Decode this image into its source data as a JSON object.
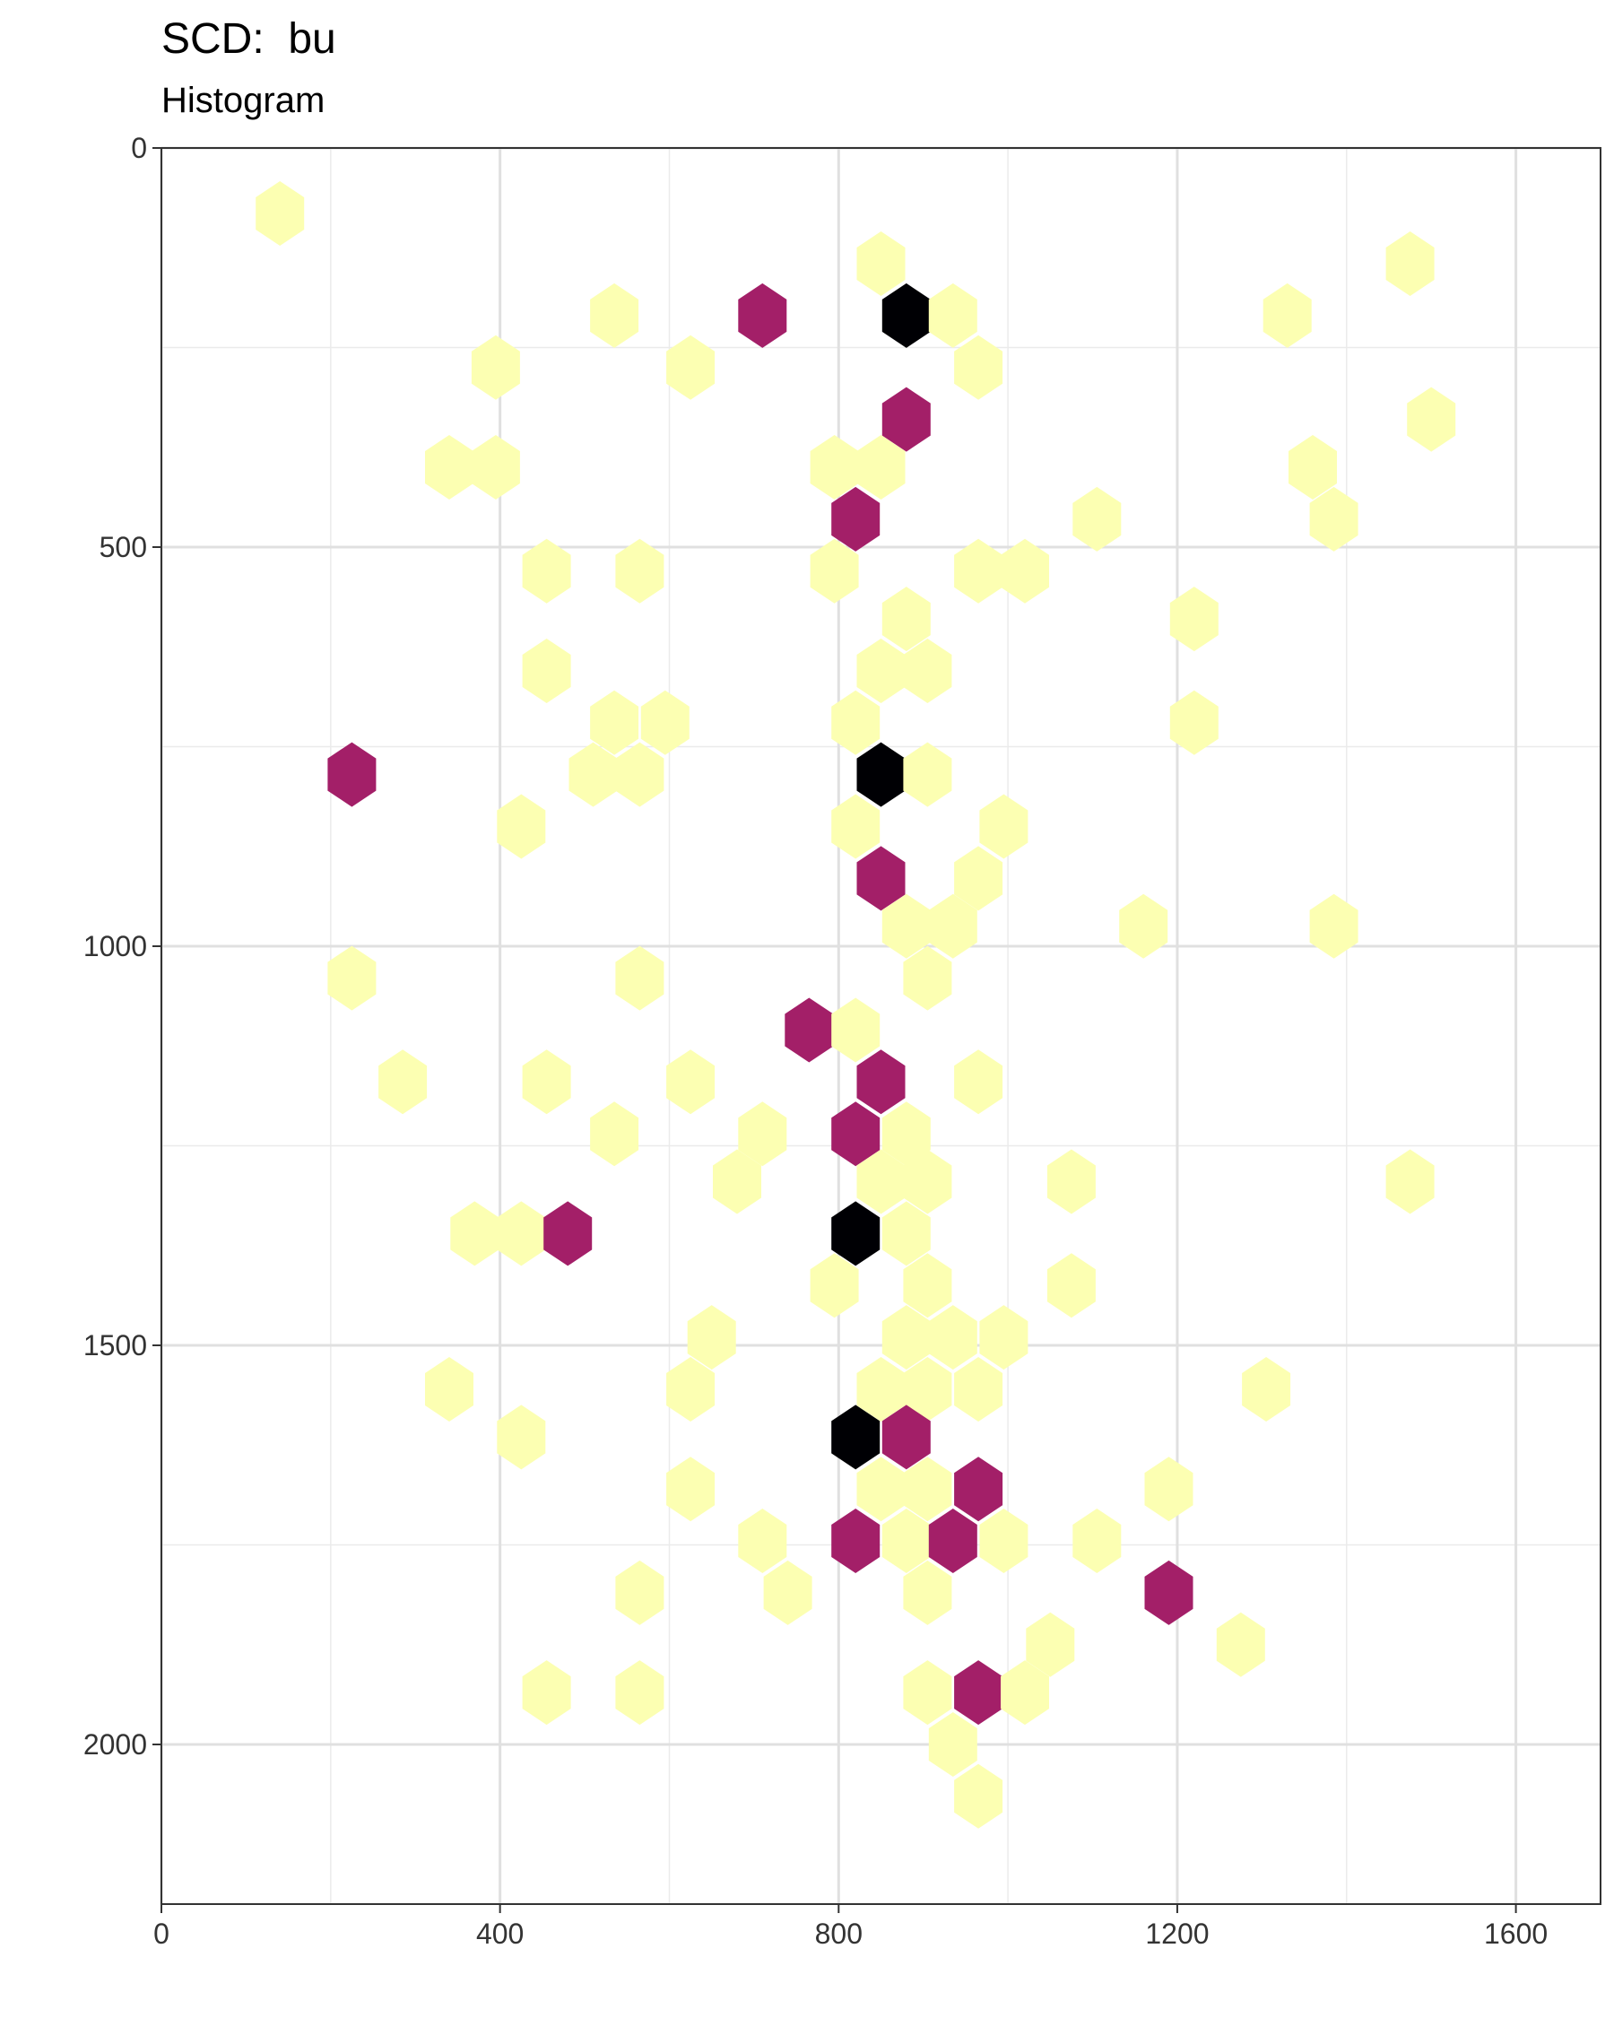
{
  "chart_data": {
    "type": "hexbin",
    "title": "SCD:  bu",
    "subtitle": "Histogram",
    "xlabel": "",
    "ylabel": "",
    "xlim": [
      0,
      1700
    ],
    "ylim": [
      0,
      2200
    ],
    "y_reversed": true,
    "grid": true,
    "x_ticks": [
      0,
      400,
      800,
      1200,
      1600
    ],
    "y_ticks": [
      0,
      500,
      1000,
      1500,
      2000
    ],
    "colors": {
      "low": "#fcffb2",
      "mid": "#a31f68",
      "high": "#000004"
    },
    "bins": [
      {
        "x": 140,
        "y": 82,
        "level": "low"
      },
      {
        "x": 850,
        "y": 145,
        "level": "low"
      },
      {
        "x": 1475,
        "y": 145,
        "level": "low"
      },
      {
        "x": 535,
        "y": 210,
        "level": "low"
      },
      {
        "x": 710,
        "y": 210,
        "level": "mid"
      },
      {
        "x": 880,
        "y": 210,
        "level": "high"
      },
      {
        "x": 935,
        "y": 210,
        "level": "low"
      },
      {
        "x": 1330,
        "y": 210,
        "level": "low"
      },
      {
        "x": 395,
        "y": 275,
        "level": "low"
      },
      {
        "x": 625,
        "y": 275,
        "level": "low"
      },
      {
        "x": 965,
        "y": 275,
        "level": "low"
      },
      {
        "x": 880,
        "y": 340,
        "level": "mid"
      },
      {
        "x": 1500,
        "y": 340,
        "level": "low"
      },
      {
        "x": 340,
        "y": 400,
        "level": "low"
      },
      {
        "x": 395,
        "y": 400,
        "level": "low"
      },
      {
        "x": 795,
        "y": 400,
        "level": "low"
      },
      {
        "x": 850,
        "y": 400,
        "level": "low"
      },
      {
        "x": 1360,
        "y": 400,
        "level": "low"
      },
      {
        "x": 820,
        "y": 465,
        "level": "mid"
      },
      {
        "x": 1105,
        "y": 465,
        "level": "low"
      },
      {
        "x": 1385,
        "y": 465,
        "level": "low"
      },
      {
        "x": 455,
        "y": 530,
        "level": "low"
      },
      {
        "x": 565,
        "y": 530,
        "level": "low"
      },
      {
        "x": 795,
        "y": 530,
        "level": "low"
      },
      {
        "x": 965,
        "y": 530,
        "level": "low"
      },
      {
        "x": 1020,
        "y": 530,
        "level": "low"
      },
      {
        "x": 880,
        "y": 590,
        "level": "low"
      },
      {
        "x": 1220,
        "y": 590,
        "level": "low"
      },
      {
        "x": 455,
        "y": 655,
        "level": "low"
      },
      {
        "x": 850,
        "y": 655,
        "level": "low"
      },
      {
        "x": 905,
        "y": 655,
        "level": "low"
      },
      {
        "x": 535,
        "y": 720,
        "level": "low"
      },
      {
        "x": 595,
        "y": 720,
        "level": "low"
      },
      {
        "x": 820,
        "y": 720,
        "level": "low"
      },
      {
        "x": 1220,
        "y": 720,
        "level": "low"
      },
      {
        "x": 225,
        "y": 785,
        "level": "mid"
      },
      {
        "x": 510,
        "y": 785,
        "level": "low"
      },
      {
        "x": 565,
        "y": 785,
        "level": "low"
      },
      {
        "x": 850,
        "y": 785,
        "level": "high"
      },
      {
        "x": 905,
        "y": 785,
        "level": "low"
      },
      {
        "x": 425,
        "y": 850,
        "level": "low"
      },
      {
        "x": 820,
        "y": 850,
        "level": "low"
      },
      {
        "x": 995,
        "y": 850,
        "level": "low"
      },
      {
        "x": 850,
        "y": 915,
        "level": "mid"
      },
      {
        "x": 965,
        "y": 915,
        "level": "low"
      },
      {
        "x": 880,
        "y": 975,
        "level": "low"
      },
      {
        "x": 935,
        "y": 975,
        "level": "low"
      },
      {
        "x": 1160,
        "y": 975,
        "level": "low"
      },
      {
        "x": 1385,
        "y": 975,
        "level": "low"
      },
      {
        "x": 225,
        "y": 1040,
        "level": "low"
      },
      {
        "x": 565,
        "y": 1040,
        "level": "low"
      },
      {
        "x": 905,
        "y": 1040,
        "level": "low"
      },
      {
        "x": 765,
        "y": 1105,
        "level": "mid"
      },
      {
        "x": 820,
        "y": 1105,
        "level": "low"
      },
      {
        "x": 285,
        "y": 1170,
        "level": "low"
      },
      {
        "x": 455,
        "y": 1170,
        "level": "low"
      },
      {
        "x": 625,
        "y": 1170,
        "level": "low"
      },
      {
        "x": 850,
        "y": 1170,
        "level": "mid"
      },
      {
        "x": 965,
        "y": 1170,
        "level": "low"
      },
      {
        "x": 535,
        "y": 1235,
        "level": "low"
      },
      {
        "x": 710,
        "y": 1235,
        "level": "low"
      },
      {
        "x": 820,
        "y": 1235,
        "level": "mid"
      },
      {
        "x": 880,
        "y": 1235,
        "level": "low"
      },
      {
        "x": 680,
        "y": 1295,
        "level": "low"
      },
      {
        "x": 850,
        "y": 1295,
        "level": "low"
      },
      {
        "x": 905,
        "y": 1295,
        "level": "low"
      },
      {
        "x": 1075,
        "y": 1295,
        "level": "low"
      },
      {
        "x": 1475,
        "y": 1295,
        "level": "low"
      },
      {
        "x": 370,
        "y": 1360,
        "level": "low"
      },
      {
        "x": 425,
        "y": 1360,
        "level": "low"
      },
      {
        "x": 480,
        "y": 1360,
        "level": "mid"
      },
      {
        "x": 820,
        "y": 1360,
        "level": "high"
      },
      {
        "x": 880,
        "y": 1360,
        "level": "low"
      },
      {
        "x": 795,
        "y": 1425,
        "level": "low"
      },
      {
        "x": 905,
        "y": 1425,
        "level": "low"
      },
      {
        "x": 1075,
        "y": 1425,
        "level": "low"
      },
      {
        "x": 650,
        "y": 1490,
        "level": "low"
      },
      {
        "x": 880,
        "y": 1490,
        "level": "low"
      },
      {
        "x": 935,
        "y": 1490,
        "level": "low"
      },
      {
        "x": 995,
        "y": 1490,
        "level": "low"
      },
      {
        "x": 340,
        "y": 1555,
        "level": "low"
      },
      {
        "x": 625,
        "y": 1555,
        "level": "low"
      },
      {
        "x": 850,
        "y": 1555,
        "level": "low"
      },
      {
        "x": 905,
        "y": 1555,
        "level": "low"
      },
      {
        "x": 965,
        "y": 1555,
        "level": "low"
      },
      {
        "x": 1305,
        "y": 1555,
        "level": "low"
      },
      {
        "x": 425,
        "y": 1615,
        "level": "low"
      },
      {
        "x": 820,
        "y": 1615,
        "level": "high"
      },
      {
        "x": 880,
        "y": 1615,
        "level": "mid"
      },
      {
        "x": 625,
        "y": 1680,
        "level": "low"
      },
      {
        "x": 850,
        "y": 1680,
        "level": "low"
      },
      {
        "x": 905,
        "y": 1680,
        "level": "low"
      },
      {
        "x": 965,
        "y": 1680,
        "level": "mid"
      },
      {
        "x": 1190,
        "y": 1680,
        "level": "low"
      },
      {
        "x": 710,
        "y": 1745,
        "level": "low"
      },
      {
        "x": 820,
        "y": 1745,
        "level": "mid"
      },
      {
        "x": 880,
        "y": 1745,
        "level": "low"
      },
      {
        "x": 935,
        "y": 1745,
        "level": "mid"
      },
      {
        "x": 995,
        "y": 1745,
        "level": "low"
      },
      {
        "x": 1105,
        "y": 1745,
        "level": "low"
      },
      {
        "x": 565,
        "y": 1810,
        "level": "low"
      },
      {
        "x": 740,
        "y": 1810,
        "level": "low"
      },
      {
        "x": 905,
        "y": 1810,
        "level": "low"
      },
      {
        "x": 1190,
        "y": 1810,
        "level": "mid"
      },
      {
        "x": 1050,
        "y": 1875,
        "level": "low"
      },
      {
        "x": 1275,
        "y": 1875,
        "level": "low"
      },
      {
        "x": 455,
        "y": 1935,
        "level": "low"
      },
      {
        "x": 565,
        "y": 1935,
        "level": "low"
      },
      {
        "x": 905,
        "y": 1935,
        "level": "low"
      },
      {
        "x": 965,
        "y": 1935,
        "level": "mid"
      },
      {
        "x": 1020,
        "y": 1935,
        "level": "low"
      },
      {
        "x": 935,
        "y": 2000,
        "level": "low"
      },
      {
        "x": 965,
        "y": 2065,
        "level": "low"
      }
    ]
  }
}
